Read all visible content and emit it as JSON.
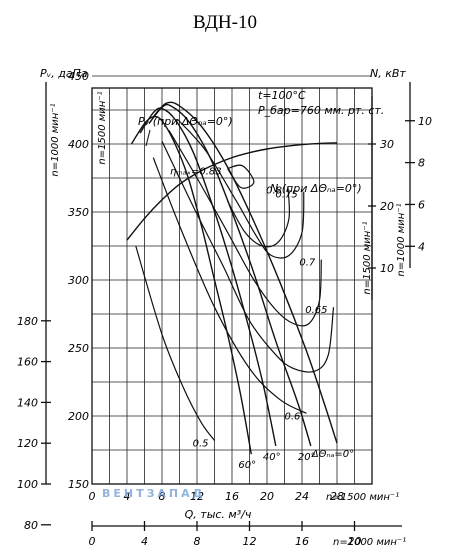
{
  "title": "ВДН-10",
  "watermark": "ВЕНТЗАПАД",
  "chart_data": {
    "type": "line",
    "title": "ВДН-10",
    "x_axes": {
      "n1500": {
        "label": "Q, тыс. м³/ч",
        "speed_label": "n=1500 мин⁻¹",
        "ticks": [
          0,
          4,
          8,
          12,
          16,
          20,
          24,
          28
        ],
        "range": [
          0,
          32
        ]
      },
      "n1000": {
        "speed_label": "n=1000 мин⁻¹",
        "ticks": [
          0,
          4,
          8,
          12,
          16,
          20
        ],
        "range": [
          0,
          21.33
        ]
      }
    },
    "y_axes": {
      "pv_label": "Pᵥ, даПа",
      "pv_n1000": {
        "speed_label": "n=1000 мин⁻¹",
        "ticks": [
          80,
          100,
          120,
          140,
          160,
          180
        ],
        "range": [
          66.7,
          200
        ]
      },
      "pv_n1500": {
        "speed_label": "n=1500 мин⁻¹",
        "ticks": [
          150,
          200,
          250,
          300,
          350,
          400,
          450
        ],
        "range": [
          150,
          450
        ]
      },
      "n_label": "N, кВт",
      "n_n1500": {
        "speed_label": "n=1500 мин⁻¹",
        "ticks": [
          10,
          20,
          30
        ],
        "range": [
          0,
          40
        ]
      },
      "n_n1000": {
        "speed_label": "n=1000 мин⁻¹",
        "ticks": [
          4,
          6,
          8,
          10
        ],
        "range": [
          0,
          11.85
        ]
      }
    },
    "conditions": [
      "t=100°C",
      "P_бар=760 мм. рт. ст."
    ],
    "pressure_curves": [
      {
        "angle": "60°",
        "points": [
          [
            4.5,
            400
          ],
          [
            6,
            415
          ],
          [
            7,
            420
          ],
          [
            8,
            417
          ],
          [
            9.5,
            400
          ],
          [
            11,
            375
          ],
          [
            12.5,
            340
          ],
          [
            14,
            300
          ],
          [
            15.5,
            260
          ],
          [
            17,
            215
          ],
          [
            18.2,
            172
          ]
        ]
      },
      {
        "angle": "40°",
        "points": [
          [
            5.5,
            408
          ],
          [
            7,
            423
          ],
          [
            8,
            426
          ],
          [
            9.5,
            418
          ],
          [
            11.5,
            395
          ],
          [
            13.5,
            360
          ],
          [
            15.5,
            320
          ],
          [
            17.5,
            275
          ],
          [
            19.5,
            225
          ],
          [
            21,
            178
          ]
        ]
      },
      {
        "angle": "20°",
        "points": [
          [
            6.5,
            415
          ],
          [
            8,
            427
          ],
          [
            9,
            428
          ],
          [
            11,
            417
          ],
          [
            13.5,
            390
          ],
          [
            16,
            350
          ],
          [
            18.5,
            305
          ],
          [
            21,
            255
          ],
          [
            23.5,
            210
          ],
          [
            25,
            178
          ]
        ]
      },
      {
        "angle": "ΔΘₙₐ=0°",
        "points": [
          [
            7,
            420
          ],
          [
            8.5,
            430
          ],
          [
            10,
            428
          ],
          [
            12.5,
            413
          ],
          [
            15.5,
            383
          ],
          [
            18.5,
            343
          ],
          [
            21.5,
            298
          ],
          [
            24.5,
            248
          ],
          [
            26.5,
            210
          ],
          [
            28,
            180
          ]
        ]
      }
    ],
    "pressure_curve_label": "Pᵥ (при ΔΘₙₐ=0°)",
    "efficiency_contours": [
      {
        "label": "0.5",
        "points": [
          [
            5,
            325
          ],
          [
            8,
            260
          ],
          [
            10.5,
            220
          ],
          [
            12.5,
            195
          ],
          [
            14,
            182
          ]
        ]
      },
      {
        "label": "0.6",
        "points": [
          [
            7,
            390
          ],
          [
            10,
            340
          ],
          [
            14,
            280
          ],
          [
            18,
            235
          ],
          [
            21.5,
            212
          ],
          [
            24.5,
            202
          ]
        ]
      },
      {
        "label": "0.65",
        "points": [
          [
            8,
            402
          ],
          [
            11.5,
            355
          ],
          [
            15,
            310
          ],
          [
            18,
            270
          ],
          [
            21,
            245
          ],
          [
            23,
            235
          ],
          [
            25.5,
            233
          ],
          [
            27,
            245
          ],
          [
            27.6,
            280
          ]
        ]
      },
      {
        "label": "0.7",
        "points": [
          [
            8.8,
            410
          ],
          [
            12,
            375
          ],
          [
            15.5,
            335
          ],
          [
            18.5,
            300
          ],
          [
            21,
            278
          ],
          [
            23,
            268
          ],
          [
            24.8,
            268
          ],
          [
            26,
            285
          ],
          [
            26.2,
            315
          ]
        ]
      },
      {
        "label": "0.75",
        "points": [
          [
            9.8,
            418
          ],
          [
            13,
            395
          ],
          [
            16.5,
            358
          ],
          [
            19,
            330
          ],
          [
            20.5,
            318
          ],
          [
            22.5,
            318
          ],
          [
            24,
            335
          ],
          [
            24.2,
            365
          ]
        ]
      },
      {
        "label": "0.8",
        "points": [
          [
            15.5,
            358
          ],
          [
            17.5,
            335
          ],
          [
            19.5,
            325
          ],
          [
            21.3,
            328
          ],
          [
            22.5,
            345
          ],
          [
            22.4,
            368
          ]
        ]
      },
      {
        "label": "ηₘₐₓ=0.83",
        "points": [
          [
            15.5,
            382
          ],
          [
            17,
            368
          ],
          [
            18.5,
            372
          ],
          [
            17.2,
            384
          ],
          [
            15.5,
            382
          ]
        ]
      }
    ],
    "power_curve": {
      "label": "N (при ΔΘₙₐ=0°)",
      "points": [
        [
          4,
          14.5
        ],
        [
          6,
          18
        ],
        [
          8,
          21
        ],
        [
          10,
          23.5
        ],
        [
          12,
          25.3
        ],
        [
          14,
          26.7
        ],
        [
          16,
          27.8
        ],
        [
          18,
          28.6
        ],
        [
          20,
          29.2
        ],
        [
          22,
          29.6
        ],
        [
          24,
          29.9
        ],
        [
          26,
          30.1
        ],
        [
          28,
          30.2
        ]
      ]
    },
    "annotations": {
      "eta_max": "ηₘₐₓ=0.83",
      "angles": [
        "60°",
        "40°",
        "20°",
        "ΔΘₙₐ=0°"
      ]
    }
  }
}
